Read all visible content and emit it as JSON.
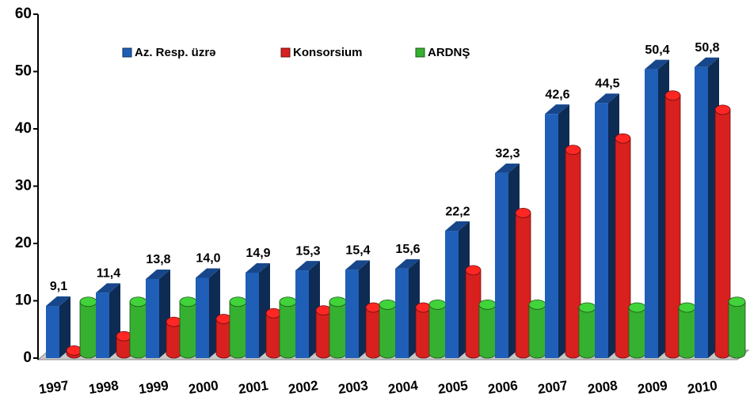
{
  "chart_data": {
    "type": "bar3d",
    "categories": [
      "1997",
      "1998",
      "1999",
      "2000",
      "2001",
      "2002",
      "2003",
      "2004",
      "2005",
      "2006",
      "2007",
      "2008",
      "2009",
      "2010"
    ],
    "series": [
      {
        "name": "Az. Resp. üzrə",
        "color": "#1f5fb8",
        "shape": "box",
        "values": [
          9.1,
          11.4,
          13.8,
          14.0,
          14.9,
          15.3,
          15.4,
          15.6,
          22.2,
          32.3,
          42.6,
          44.5,
          50.4,
          50.8
        ],
        "value_labels": [
          "9,1",
          "11,4",
          "13,8",
          "14,0",
          "14,9",
          "15,3",
          "15,4",
          "15,6",
          "22,2",
          "32,3",
          "42,6",
          "44,5",
          "50,4",
          "50,8"
        ]
      },
      {
        "name": "Konsorsium",
        "color": "#d8201e",
        "shape": "cylinder",
        "values": [
          0.5,
          3,
          5.5,
          6,
          7,
          7.5,
          8,
          8,
          14.5,
          24.5,
          35.5,
          37.5,
          45,
          42.5
        ]
      },
      {
        "name": "ARDNŞ",
        "color": "#36b030",
        "shape": "cylinder",
        "values": [
          9,
          9,
          9,
          9,
          9,
          9,
          8.5,
          8.5,
          8.5,
          8.5,
          8,
          8,
          8,
          9
        ]
      }
    ],
    "ylim": [
      0,
      60
    ],
    "yticks": [
      0,
      10,
      20,
      30,
      40,
      50,
      60
    ]
  }
}
